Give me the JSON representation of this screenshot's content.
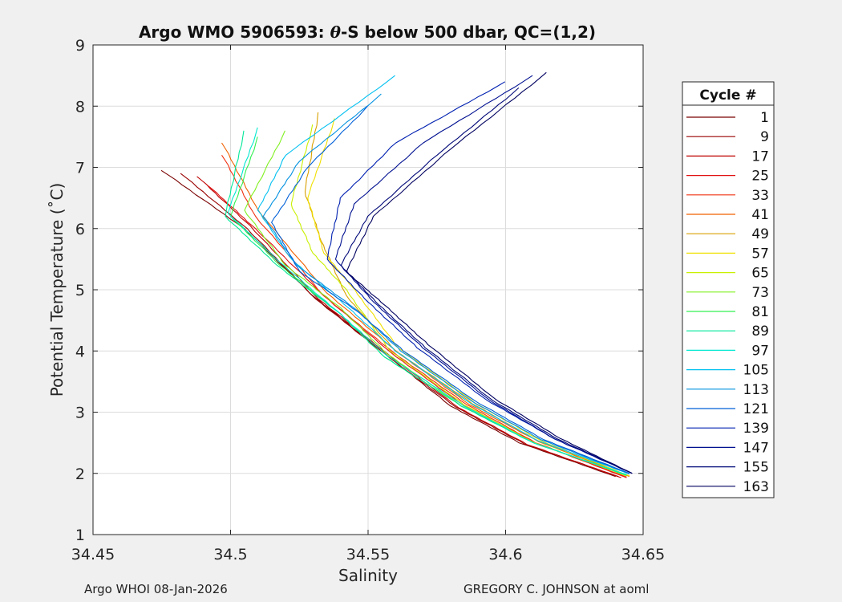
{
  "chart_data": {
    "type": "line",
    "title_prefix": "Argo WMO 5906593: ",
    "title_symbol": "θ",
    "title_suffix": "-S below 500 dbar,  QC=(1,2)",
    "xlabel": "Salinity",
    "ylabel": "Potential Temperature (˚C)",
    "xlim": [
      34.45,
      34.65
    ],
    "ylim": [
      1,
      9
    ],
    "xticks": [
      34.45,
      34.5,
      34.55,
      34.6,
      34.65
    ],
    "xtick_labels": [
      "34.45",
      "34.5",
      "34.55",
      "34.6",
      "34.65"
    ],
    "yticks": [
      1,
      2,
      3,
      4,
      5,
      6,
      7,
      8,
      9
    ],
    "ytick_labels": [
      "1",
      "2",
      "3",
      "4",
      "5",
      "6",
      "7",
      "8",
      "9"
    ],
    "grid": true,
    "legend_title": "Cycle #",
    "legend_position": "right-outside",
    "series": [
      {
        "name": "1",
        "color": "#7a0000",
        "s": [
          34.475,
          34.505,
          34.53,
          34.555,
          34.58,
          34.605,
          34.64
        ],
        "t": [
          6.95,
          6.0,
          4.9,
          4.0,
          3.1,
          2.5,
          1.95
        ]
      },
      {
        "name": "9",
        "color": "#9a0000",
        "s": [
          34.482,
          34.506,
          34.531,
          34.556,
          34.582,
          34.607,
          34.641
        ],
        "t": [
          6.9,
          6.0,
          4.85,
          3.95,
          3.08,
          2.48,
          1.95
        ]
      },
      {
        "name": "17",
        "color": "#c00000",
        "s": [
          34.488,
          34.507,
          34.532,
          34.557,
          34.583,
          34.608,
          34.642
        ],
        "t": [
          6.85,
          6.05,
          4.85,
          3.95,
          3.07,
          2.47,
          1.93
        ]
      },
      {
        "name": "25",
        "color": "#e01010",
        "s": [
          34.492,
          34.509,
          34.534,
          34.558,
          34.585,
          34.611,
          34.644
        ],
        "t": [
          6.7,
          6.0,
          4.9,
          3.98,
          3.1,
          2.5,
          1.93
        ]
      },
      {
        "name": "33",
        "color": "#f03010",
        "s": [
          34.497,
          34.509,
          34.534,
          34.559,
          34.586,
          34.611,
          34.644
        ],
        "t": [
          7.2,
          6.2,
          4.9,
          3.98,
          3.12,
          2.5,
          1.94
        ]
      },
      {
        "name": "41",
        "color": "#f06000",
        "s": [
          34.497,
          34.51,
          34.535,
          34.56,
          34.587,
          34.612,
          34.645
        ],
        "t": [
          7.4,
          6.3,
          4.95,
          4.0,
          3.12,
          2.52,
          1.95
        ]
      },
      {
        "name": "49",
        "color": "#d8a000",
        "s": [
          34.532,
          34.527,
          34.533,
          34.542,
          34.56,
          34.588,
          34.612,
          34.645
        ],
        "t": [
          7.9,
          6.6,
          5.8,
          4.9,
          4.0,
          3.14,
          2.52,
          1.96
        ]
      },
      {
        "name": "57",
        "color": "#f0e000",
        "s": [
          34.538,
          34.528,
          34.534,
          34.545,
          34.561,
          34.589,
          34.613,
          34.645
        ],
        "t": [
          7.8,
          6.5,
          5.6,
          5.0,
          4.05,
          3.15,
          2.53,
          1.96
        ]
      },
      {
        "name": "65",
        "color": "#c8f000",
        "s": [
          34.53,
          34.522,
          34.53,
          34.542,
          34.558,
          34.585,
          34.61,
          34.644
        ],
        "t": [
          7.7,
          6.4,
          5.6,
          5.0,
          4.0,
          3.12,
          2.51,
          1.96
        ]
      },
      {
        "name": "73",
        "color": "#80f020",
        "s": [
          34.52,
          34.505,
          34.52,
          34.54,
          34.557,
          34.584,
          34.61,
          34.644
        ],
        "t": [
          7.6,
          6.3,
          5.4,
          4.7,
          3.95,
          3.1,
          2.5,
          1.97
        ]
      },
      {
        "name": "81",
        "color": "#30f050",
        "s": [
          34.51,
          34.5,
          34.518,
          34.54,
          34.556,
          34.584,
          34.61,
          34.644
        ],
        "t": [
          7.5,
          6.2,
          5.4,
          4.6,
          3.9,
          3.1,
          2.5,
          1.97
        ]
      },
      {
        "name": "89",
        "color": "#00e898",
        "s": [
          34.505,
          34.498,
          34.517,
          34.54,
          34.556,
          34.584,
          34.61,
          34.644
        ],
        "t": [
          7.6,
          6.2,
          5.4,
          4.6,
          3.9,
          3.1,
          2.5,
          1.98
        ]
      },
      {
        "name": "97",
        "color": "#00e8d0",
        "s": [
          34.51,
          34.499,
          34.518,
          34.54,
          34.557,
          34.585,
          34.61,
          34.644
        ],
        "t": [
          7.65,
          6.25,
          5.45,
          4.6,
          3.92,
          3.1,
          2.5,
          1.98
        ]
      },
      {
        "name": "105",
        "color": "#00c0f0",
        "s": [
          34.56,
          34.52,
          34.51,
          34.522,
          34.543,
          34.56,
          34.587,
          34.612,
          34.645
        ],
        "t": [
          8.5,
          7.2,
          6.3,
          5.5,
          4.7,
          4.0,
          3.15,
          2.53,
          1.99
        ]
      },
      {
        "name": "113",
        "color": "#0090e0",
        "s": [
          34.555,
          34.525,
          34.512,
          34.524,
          34.545,
          34.562,
          34.588,
          34.613,
          34.645
        ],
        "t": [
          8.2,
          7.1,
          6.2,
          5.4,
          4.7,
          4.0,
          3.17,
          2.55,
          1.99
        ]
      },
      {
        "name": "121",
        "color": "#0060d8",
        "s": [
          34.55,
          34.528,
          34.515,
          34.525,
          34.546,
          34.563,
          34.589,
          34.614,
          34.645
        ],
        "t": [
          8.0,
          7.0,
          6.1,
          5.3,
          4.65,
          4.0,
          3.18,
          2.55,
          2.0
        ]
      },
      {
        "name": "139",
        "color": "#0020b0",
        "s": [
          34.6,
          34.56,
          34.54,
          34.535,
          34.55,
          34.568,
          34.593,
          34.618,
          34.646
        ],
        "t": [
          8.4,
          7.4,
          6.5,
          5.5,
          4.8,
          4.05,
          3.2,
          2.56,
          2.0
        ]
      },
      {
        "name": "147",
        "color": "#001090",
        "s": [
          34.61,
          34.57,
          34.545,
          34.538,
          34.552,
          34.57,
          34.594,
          34.618,
          34.646
        ],
        "t": [
          8.5,
          7.4,
          6.4,
          5.5,
          4.8,
          4.05,
          3.2,
          2.56,
          2.0
        ]
      },
      {
        "name": "155",
        "color": "#000878",
        "s": [
          34.605,
          34.575,
          34.55,
          34.54,
          34.554,
          34.571,
          34.595,
          34.619,
          34.646
        ],
        "t": [
          8.3,
          7.2,
          6.2,
          5.4,
          4.75,
          4.05,
          3.2,
          2.56,
          2.0
        ]
      },
      {
        "name": "163",
        "color": "#000060",
        "s": [
          34.615,
          34.58,
          34.552,
          34.542,
          34.556,
          34.572,
          34.596,
          34.62,
          34.646
        ],
        "t": [
          8.55,
          7.3,
          6.2,
          5.3,
          4.75,
          4.1,
          3.22,
          2.57,
          2.0
        ]
      }
    ]
  },
  "footer": {
    "left": "Argo WHOI 08-Jan-2026",
    "right": "GREGORY C. JOHNSON at aoml"
  }
}
